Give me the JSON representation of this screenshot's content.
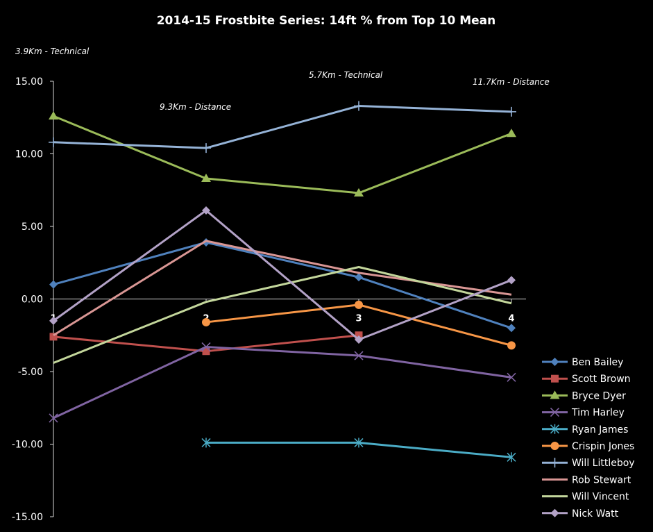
{
  "chart_data": {
    "type": "line",
    "title": "2014-15 Frostbite Series: 14ft % from Top 10 Mean",
    "xlabel": "",
    "ylabel": "",
    "categories": [
      "1",
      "2",
      "3",
      "4"
    ],
    "ylim": [
      -15,
      15
    ],
    "yticks": [
      "15.00",
      "10.00",
      "5.00",
      "0.00",
      "-5.00",
      "-10.00",
      "-15.00"
    ],
    "grid": false,
    "legend_position": "bottom-right",
    "annotations": [
      {
        "text": "3.9Km - Technical",
        "category": "1"
      },
      {
        "text": "9.3Km - Distance",
        "category": "2"
      },
      {
        "text": "5.7Km - Technical",
        "category": "3"
      },
      {
        "text": "11.7Km - Distance",
        "category": "4"
      }
    ],
    "series": [
      {
        "name": "Ben Bailey",
        "color": "#4F81BD",
        "marker": "diamond",
        "values": [
          1.0,
          3.9,
          1.5,
          -2.0
        ]
      },
      {
        "name": "Scott Brown",
        "color": "#C0504D",
        "marker": "square",
        "values": [
          -2.6,
          -3.6,
          -2.5,
          null
        ]
      },
      {
        "name": "Bryce Dyer",
        "color": "#9BBB59",
        "marker": "triangle",
        "values": [
          12.6,
          8.3,
          7.3,
          11.4
        ]
      },
      {
        "name": "Tim Harley",
        "color": "#8064A2",
        "marker": "x",
        "values": [
          -8.2,
          -3.3,
          -3.9,
          -5.4
        ]
      },
      {
        "name": "Ryan James",
        "color": "#4BACC6",
        "marker": "star",
        "values": [
          null,
          -9.9,
          -9.9,
          -10.9
        ]
      },
      {
        "name": "Crispin Jones",
        "color": "#F79646",
        "marker": "circle",
        "values": [
          null,
          -1.6,
          -0.4,
          -3.2
        ]
      },
      {
        "name": "Will Littleboy",
        "color": "#95B3D7",
        "marker": "plus",
        "values": [
          10.8,
          10.4,
          13.3,
          12.9
        ]
      },
      {
        "name": "Rob Stewart",
        "color": "#D99694",
        "marker": "none",
        "values": [
          -2.5,
          4.0,
          1.8,
          0.3
        ]
      },
      {
        "name": "Will Vincent",
        "color": "#C3D69B",
        "marker": "none",
        "values": [
          -4.4,
          -0.2,
          2.2,
          -0.3
        ]
      },
      {
        "name": "Nick Watt",
        "color": "#B3A2C7",
        "marker": "diamond",
        "values": [
          -1.5,
          6.1,
          -2.8,
          1.3
        ]
      }
    ]
  }
}
